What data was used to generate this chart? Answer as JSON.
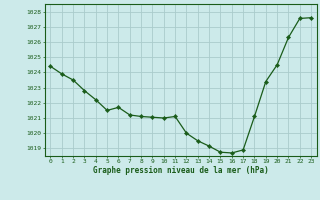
{
  "x": [
    0,
    1,
    2,
    3,
    4,
    5,
    6,
    7,
    8,
    9,
    10,
    11,
    12,
    13,
    14,
    15,
    16,
    17,
    18,
    19,
    20,
    21,
    22,
    23
  ],
  "y": [
    1024.4,
    1023.9,
    1023.5,
    1022.8,
    1022.2,
    1021.5,
    1021.7,
    1021.2,
    1021.1,
    1021.05,
    1021.0,
    1021.1,
    1020.0,
    1019.5,
    1019.15,
    1018.75,
    1018.7,
    1018.9,
    1021.1,
    1023.4,
    1024.5,
    1026.3,
    1027.55,
    1027.6
  ],
  "line_color": "#1a5c1a",
  "marker": "D",
  "marker_size": 2.2,
  "bg_color": "#cceaea",
  "grid_color": "#aacccc",
  "tick_label_color": "#1a5c1a",
  "xlabel": "Graphe pression niveau de la mer (hPa)",
  "ylim": [
    1018.5,
    1028.5
  ],
  "yticks": [
    1019,
    1020,
    1021,
    1022,
    1023,
    1024,
    1025,
    1026,
    1027,
    1028
  ],
  "xlim": [
    -0.5,
    23.5
  ],
  "xticks": [
    0,
    1,
    2,
    3,
    4,
    5,
    6,
    7,
    8,
    9,
    10,
    11,
    12,
    13,
    14,
    15,
    16,
    17,
    18,
    19,
    20,
    21,
    22,
    23
  ]
}
